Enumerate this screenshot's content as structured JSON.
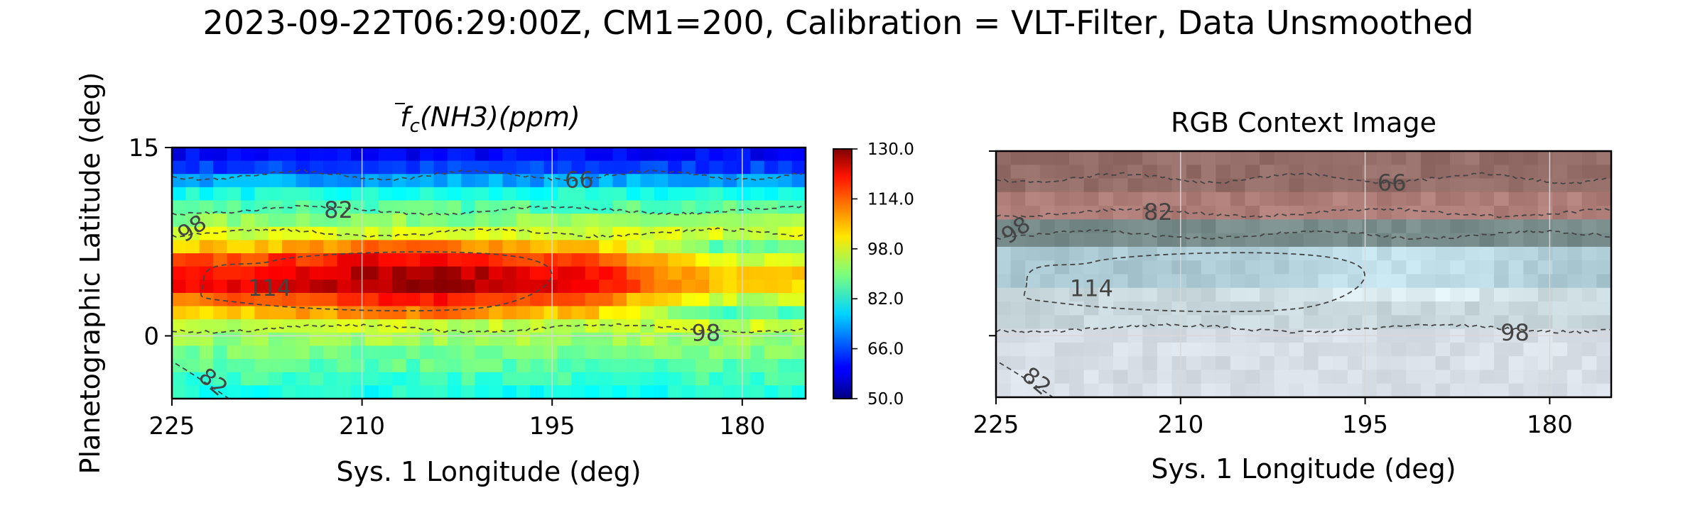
{
  "figure": {
    "suptitle": "2023-09-22T06:29:00Z, CM1=200, Calibration = VLT-Filter, Data Unsmoothed",
    "shared_ylabel": "Planetographic Latitude (deg)"
  },
  "colorbar": {
    "colormap": "jet",
    "range": [
      50,
      130
    ],
    "ticks": [
      "130.0",
      "114.0",
      "98.0",
      "82.0",
      "66.0",
      "50.0"
    ]
  },
  "chart_data": [
    {
      "type": "heatmap",
      "title": "f̄c(NH3)(ppm)",
      "title_parts": {
        "f": "f",
        "sub": "c",
        "rest": "(NH3)(ppm)"
      },
      "xlabel": "Sys. 1 Longitude (deg)",
      "ylabel": "Planetographic Latitude (deg)",
      "xlim": [
        225,
        175
      ],
      "ylim": [
        -5,
        15
      ],
      "xticks": [
        "225",
        "210",
        "195",
        "180"
      ],
      "xtick_values": [
        225,
        210,
        195,
        180
      ],
      "yticks": [
        "15",
        "0"
      ],
      "ytick_values": [
        15,
        0
      ],
      "grid": true,
      "contour_levels": [
        66,
        82,
        98,
        114
      ],
      "contour_labels": [
        "66",
        "82",
        "98",
        "114",
        "98",
        "82"
      ],
      "field_rows_top_to_bottom": [
        {
          "lat": 14,
          "ppm": 60
        },
        {
          "lat": 12.5,
          "ppm": 72
        },
        {
          "lat": 11,
          "ppm": 84
        },
        {
          "lat": 9,
          "ppm": 92
        },
        {
          "lat": 7.5,
          "ppm": 100
        },
        {
          "lat": 5.5,
          "ppm": 118
        },
        {
          "lat": 4,
          "ppm": 120
        },
        {
          "lat": 2.5,
          "ppm": 108
        },
        {
          "lat": 1,
          "ppm": 96
        },
        {
          "lat": -1,
          "ppm": 90
        },
        {
          "lat": -3,
          "ppm": 86
        },
        {
          "lat": -4.5,
          "ppm": 82
        }
      ]
    },
    {
      "type": "heatmap",
      "title": "RGB Context Image",
      "xlabel": "Sys. 1 Longitude (deg)",
      "xlim": [
        225,
        175
      ],
      "ylim": [
        -5,
        15
      ],
      "xticks": [
        "225",
        "210",
        "195",
        "180"
      ],
      "xtick_values": [
        225,
        210,
        195,
        180
      ],
      "grid": true,
      "contour_levels": [
        66,
        82,
        98,
        114
      ],
      "contour_labels": [
        "66",
        "82",
        "98",
        "114",
        "98",
        "82"
      ]
    }
  ]
}
